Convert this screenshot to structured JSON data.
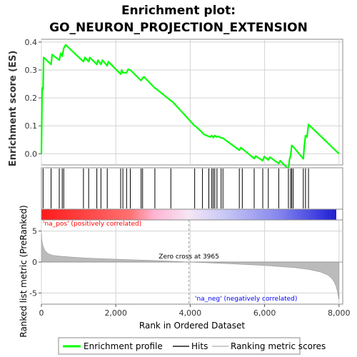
{
  "colors": {
    "enrichment": "#00ff00",
    "hits": "#000000",
    "metric_fill": "#bbbbbb",
    "grid": "#d3d3d3",
    "pos_text": "#ff0000",
    "neg_text": "#0000ff",
    "zero_line": "#999999"
  },
  "chart_data": [
    {
      "type": "line",
      "name": "enrichment-profile",
      "title_line1": "Enrichment plot:",
      "title_line2": "GO_NEURON_PROJECTION_EXTENSION",
      "ylabel": "Enrichment score (ES)",
      "xlim": [
        0,
        8100
      ],
      "ylim": [
        -0.04,
        0.41
      ],
      "yticks": [
        0.0,
        0.1,
        0.2,
        0.3,
        0.4
      ],
      "ytick_labels": [
        "0.0",
        "0.1",
        "0.2",
        "0.3",
        "0.4"
      ],
      "series": [
        {
          "name": "Enrichment profile",
          "x": [
            0,
            20,
            45,
            60,
            260,
            290,
            480,
            520,
            560,
            600,
            650,
            1130,
            1170,
            1270,
            1300,
            1490,
            1520,
            1600,
            1640,
            1770,
            1800,
            2130,
            2160,
            2190,
            2290,
            2330,
            2390,
            2680,
            2720,
            2760,
            3050,
            3090,
            3480,
            3520,
            4120,
            4160,
            4330,
            4360,
            4500,
            4540,
            4580,
            4620,
            4660,
            4720,
            4760,
            4830,
            4880,
            5320,
            5360,
            5400,
            5720,
            5760,
            5950,
            5990,
            6100,
            6140,
            6380,
            6420,
            6640,
            6670,
            6700,
            6730,
            6770,
            7040,
            7070,
            7100,
            7140,
            7180,
            8000
          ],
          "y": [
            0.0,
            0.235,
            0.23,
            0.345,
            0.32,
            0.355,
            0.335,
            0.36,
            0.35,
            0.378,
            0.39,
            0.33,
            0.345,
            0.33,
            0.345,
            0.32,
            0.335,
            0.32,
            0.335,
            0.315,
            0.33,
            0.285,
            0.3,
            0.29,
            0.29,
            0.302,
            0.3,
            0.262,
            0.272,
            0.275,
            0.235,
            0.232,
            0.19,
            0.187,
            0.1,
            0.097,
            0.075,
            0.07,
            0.062,
            0.06,
            0.065,
            0.058,
            0.065,
            0.06,
            0.062,
            0.057,
            0.056,
            0.013,
            0.022,
            0.018,
            -0.017,
            -0.008,
            -0.025,
            -0.01,
            -0.022,
            -0.012,
            -0.035,
            -0.025,
            -0.055,
            -0.02,
            -0.005,
            0.03,
            0.025,
            -0.018,
            0.03,
            0.065,
            0.06,
            0.105,
            0.0
          ]
        }
      ]
    },
    {
      "type": "scatter",
      "name": "hits",
      "legend": "Hits",
      "x": [
        45,
        260,
        480,
        560,
        600,
        1130,
        1270,
        1490,
        1600,
        1770,
        2130,
        2190,
        2290,
        2390,
        2680,
        2720,
        3050,
        3480,
        4120,
        4330,
        4500,
        4580,
        4620,
        4660,
        4720,
        4830,
        4880,
        5320,
        5400,
        5720,
        5950,
        6100,
        6380,
        6640,
        6700,
        6730,
        6770,
        7040,
        7100,
        7180
      ]
    },
    {
      "type": "area",
      "name": "ranked-list-metric",
      "legend": "Ranking metric scores",
      "title": "Ranked list metric (PreRanked)",
      "xlabel": "Rank in Ordered Dataset",
      "ylabel": "Ranked list metric (PreRanked)",
      "xlim": [
        0,
        8100
      ],
      "ylim": [
        -6.8,
        6.8
      ],
      "yticks": [
        -5,
        0,
        5
      ],
      "ytick_labels": [
        "-5",
        "0",
        "5"
      ],
      "xticks": [
        0,
        2000,
        4000,
        6000,
        8000
      ],
      "xtick_labels": [
        "0",
        "2,000",
        "4,000",
        "6,000",
        "8,000"
      ],
      "x": [
        0,
        10,
        30,
        60,
        100,
        150,
        200,
        300,
        500,
        800,
        1200,
        2000,
        3000,
        3965,
        5000,
        6000,
        6800,
        7200,
        7500,
        7700,
        7800,
        7870,
        7920,
        7960,
        7985,
        8000
      ],
      "y": [
        4.7,
        3.6,
        2.9,
        2.3,
        1.8,
        1.5,
        1.3,
        1.1,
        0.95,
        0.8,
        0.65,
        0.45,
        0.25,
        0.0,
        -0.25,
        -0.55,
        -0.9,
        -1.2,
        -1.6,
        -2.1,
        -2.6,
        -3.2,
        -3.9,
        -4.8,
        -5.7,
        -6.0
      ],
      "zero_cross_rank": 3965,
      "annotations": {
        "zero_cross": "Zero cross at 3965",
        "pos": "'na_pos' (positively correlated)",
        "neg": "'na_neg' (negatively correlated)"
      }
    }
  ],
  "legend": {
    "items": [
      "Enrichment profile",
      "Hits",
      "Ranking metric scores"
    ]
  }
}
